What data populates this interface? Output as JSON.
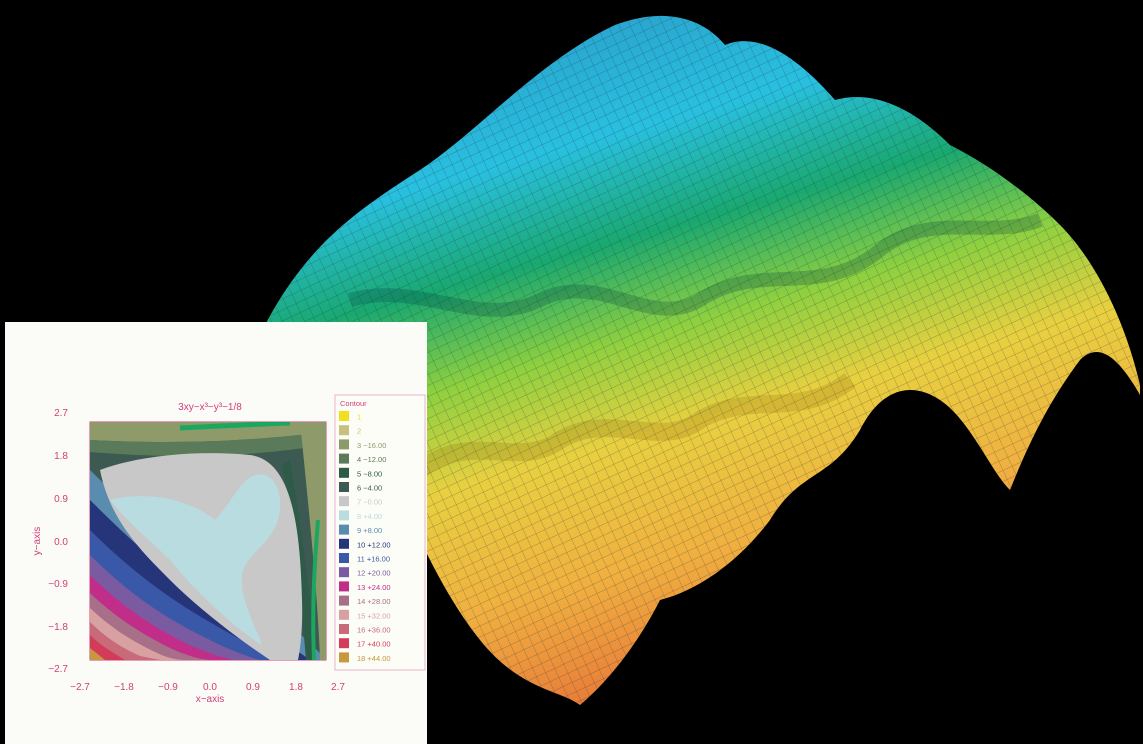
{
  "chart_data": [
    {
      "type": "surface",
      "colors": [
        "#2a8ec0",
        "#29c0e0",
        "#1aa870",
        "#8ed040",
        "#e8d040",
        "#f0b040",
        "#e87e3a"
      ]
    },
    {
      "type": "contour",
      "title": "3xy−x³−y³−1/8",
      "xlabel": "x−axis",
      "ylabel": "y−axis",
      "xlim": [
        -2.7,
        2.7
      ],
      "ylim": [
        -2.7,
        2.7
      ],
      "x_ticks": [
        "−2.7",
        "−1.8",
        "−0.9",
        "0.0",
        "0.9",
        "1.8",
        "2.7"
      ],
      "y_ticks": [
        "2.7",
        "1.8",
        "0.9",
        "0.0",
        "−0.9",
        "−1.8",
        "−2.7"
      ],
      "legend": {
        "title": "Contour",
        "entries": [
          {
            "label": "1",
            "color": "#f0e020"
          },
          {
            "label": "2",
            "color": "#c8c080"
          },
          {
            "label": "3 −16.00",
            "color": "#8e9a6a"
          },
          {
            "label": "4 −12.00",
            "color": "#5a7a5a"
          },
          {
            "label": "5 −8.00",
            "color": "#2e5a48"
          },
          {
            "label": "6 −4.00",
            "color": "#3c5a52"
          },
          {
            "label": "7 −0.00",
            "color": "#c8c8c8"
          },
          {
            "label": "8 +4.00",
            "color": "#b8dce0"
          },
          {
            "label": "9 +8.00",
            "color": "#5a8cb0"
          },
          {
            "label": "10 +12.00",
            "color": "#26347a"
          },
          {
            "label": "11 +16.00",
            "color": "#3a58a8"
          },
          {
            "label": "12 +20.00",
            "color": "#7a5aa0"
          },
          {
            "label": "13 +24.00",
            "color": "#c02e8a"
          },
          {
            "label": "14 +28.00",
            "color": "#a87088"
          },
          {
            "label": "15 +32.00",
            "color": "#d8a0a0"
          },
          {
            "label": "16 +36.00",
            "color": "#c86a7a"
          },
          {
            "label": "17 +40.00",
            "color": "#d23c58"
          },
          {
            "label": "18 +44.00",
            "color": "#c89840"
          }
        ]
      },
      "ridge_color": "#1aa860"
    }
  ]
}
